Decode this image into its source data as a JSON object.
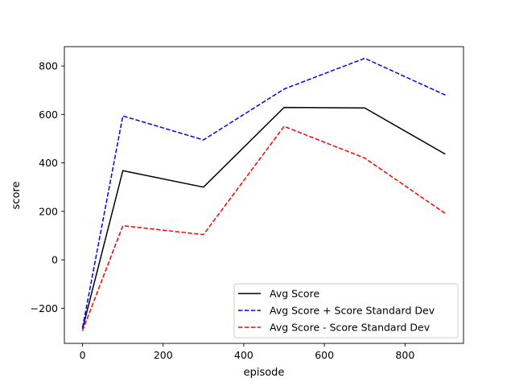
{
  "chart_data": {
    "type": "line",
    "xlabel": "episode",
    "ylabel": "score",
    "xlim": [
      -45,
      945
    ],
    "ylim": [
      -345,
      880
    ],
    "xticks": [
      0,
      200,
      400,
      600,
      800
    ],
    "yticks": [
      -200,
      0,
      200,
      400,
      600,
      800
    ],
    "xtick_labels": [
      "0",
      "200",
      "400",
      "600",
      "800"
    ],
    "ytick_labels": [
      "−200",
      "0",
      "200",
      "400",
      "600",
      "800"
    ],
    "grid": false,
    "legend_position": "lower-right",
    "x": [
      0,
      100,
      300,
      500,
      700,
      900
    ],
    "series": [
      {
        "name": "Avg Score",
        "values": [
          -285,
          368,
          300,
          629,
          627,
          436
        ],
        "color": "#000000",
        "style": "solid"
      },
      {
        "name": "Avg Score + Score Standard Dev",
        "values": [
          -280,
          594,
          495,
          705,
          832,
          680
        ],
        "color": "#0000ff",
        "style": "dashed"
      },
      {
        "name": "Avg Score - Score Standard Dev",
        "values": [
          -293,
          141,
          104,
          551,
          420,
          191
        ],
        "color": "#ff0000",
        "style": "dashed"
      }
    ]
  }
}
